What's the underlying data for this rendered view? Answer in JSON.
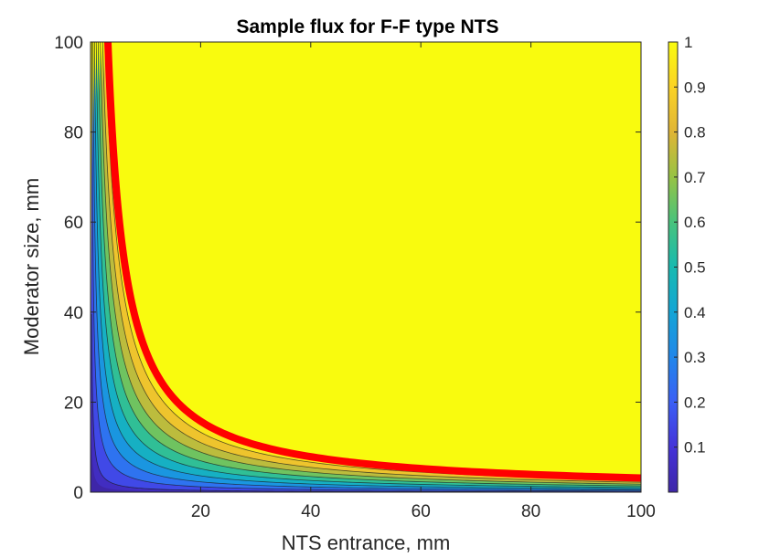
{
  "chart_data": {
    "type": "heatmap",
    "title": "Sample flux for F-F type NTS",
    "xlabel": "NTS entrance, mm",
    "ylabel": "Moderator size, mm",
    "xlim": [
      0,
      100
    ],
    "ylim": [
      0,
      100
    ],
    "x_ticks": [
      20,
      40,
      60,
      80,
      100
    ],
    "y_ticks": [
      0,
      20,
      40,
      60,
      80,
      100
    ],
    "colorbar": {
      "colormap": "parula",
      "range": [
        0,
        1
      ],
      "ticks": [
        0.1,
        0.2,
        0.3,
        0.4,
        0.5,
        0.6,
        0.7,
        0.8,
        0.9,
        1
      ]
    },
    "contour_levels": [
      0.1,
      0.2,
      0.3,
      0.4,
      0.5,
      0.6,
      0.7,
      0.8,
      0.9
    ],
    "highlight_contour": {
      "color": "#ff0000",
      "points": [
        [
          4,
          100
        ],
        [
          5,
          70
        ],
        [
          6,
          50
        ],
        [
          8,
          37
        ],
        [
          10,
          29
        ],
        [
          15,
          19
        ],
        [
          20,
          14.5
        ],
        [
          30,
          9.8
        ],
        [
          40,
          7.4
        ],
        [
          60,
          5.2
        ],
        [
          80,
          4.1
        ],
        [
          100,
          3.4
        ]
      ]
    }
  }
}
